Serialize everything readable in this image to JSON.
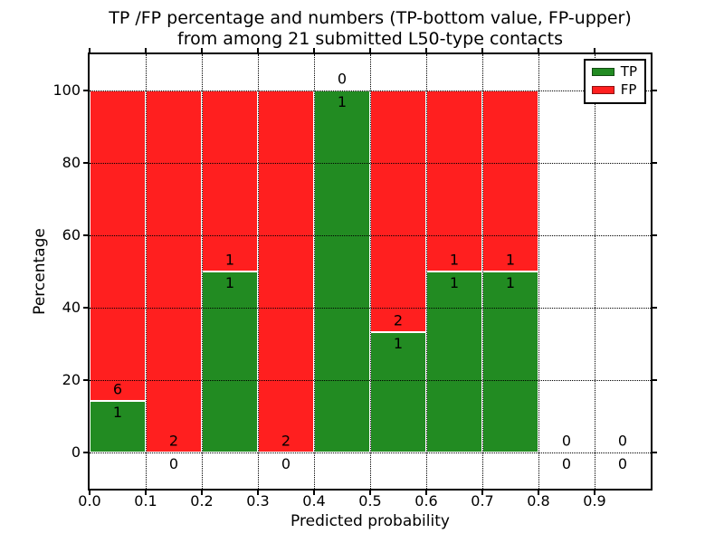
{
  "figure": {
    "title_line1": "TP /FP percentage and numbers (TP-bottom value, FP-upper)",
    "title_line2": "from among 21 submitted L50-type contacts",
    "xlabel": "Predicted probability",
    "ylabel": "Percentage",
    "background_color": "#ffffff"
  },
  "chart_data": {
    "type": "bar",
    "stacked": true,
    "title": "TP /FP percentage and numbers (TP-bottom value, FP-upper)\nfrom among 21 submitted L50-type contacts",
    "xlabel": "Predicted probability",
    "ylabel": "Percentage",
    "xlim": [
      0.0,
      1.0
    ],
    "ylim": [
      -10,
      110
    ],
    "x_bin_width": 0.1,
    "xticks": [
      "0.0",
      "0.1",
      "0.2",
      "0.3",
      "0.4",
      "0.5",
      "0.6",
      "0.7",
      "0.8",
      "0.9"
    ],
    "yticks": [
      "0",
      "20",
      "40",
      "60",
      "80",
      "100"
    ],
    "grid_style": "dotted",
    "grid_on": true,
    "legend": {
      "position": "upper right",
      "entries": [
        {
          "label": "TP",
          "color": "#228b22"
        },
        {
          "label": "FP",
          "color": "#ff1f1f"
        }
      ]
    },
    "series": [
      {
        "name": "TP",
        "color": "#228b22",
        "counts": [
          1,
          0,
          1,
          0,
          1,
          1,
          1,
          1,
          0,
          0
        ]
      },
      {
        "name": "FP",
        "color": "#ff1f1f",
        "counts": [
          6,
          2,
          1,
          2,
          0,
          2,
          1,
          1,
          0,
          0
        ]
      }
    ],
    "total_contacts": 21,
    "bins": [
      {
        "range": "0.0-0.1",
        "tp": 1,
        "fp": 6,
        "tp_pct": 14.29,
        "fp_pct": 85.71
      },
      {
        "range": "0.1-0.2",
        "tp": 0,
        "fp": 2,
        "tp_pct": 0,
        "fp_pct": 100
      },
      {
        "range": "0.2-0.3",
        "tp": 1,
        "fp": 1,
        "tp_pct": 50,
        "fp_pct": 50
      },
      {
        "range": "0.3-0.4",
        "tp": 0,
        "fp": 2,
        "tp_pct": 0,
        "fp_pct": 100
      },
      {
        "range": "0.4-0.5",
        "tp": 1,
        "fp": 0,
        "tp_pct": 100,
        "fp_pct": 0
      },
      {
        "range": "0.5-0.6",
        "tp": 1,
        "fp": 2,
        "tp_pct": 33.33,
        "fp_pct": 66.67
      },
      {
        "range": "0.6-0.7",
        "tp": 1,
        "fp": 1,
        "tp_pct": 50,
        "fp_pct": 50
      },
      {
        "range": "0.7-0.8",
        "tp": 1,
        "fp": 1,
        "tp_pct": 50,
        "fp_pct": 50
      },
      {
        "range": "0.8-0.9",
        "tp": 0,
        "fp": 0,
        "tp_pct": 0,
        "fp_pct": 0
      },
      {
        "range": "0.9-1.0",
        "tp": 0,
        "fp": 0,
        "tp_pct": 0,
        "fp_pct": 0
      }
    ]
  }
}
